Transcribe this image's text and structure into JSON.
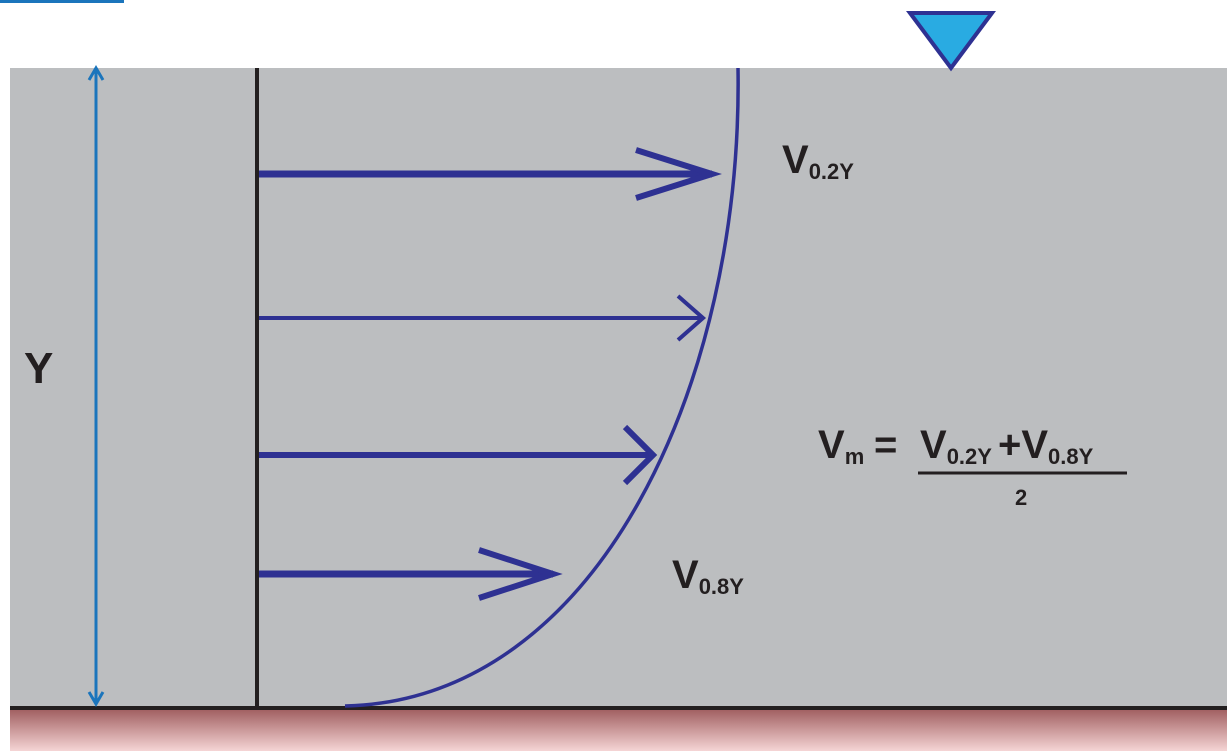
{
  "labels": {
    "depth": "Y",
    "v_upper": {
      "main": "V",
      "sub": "0.2Y"
    },
    "v_lower": {
      "main": "V",
      "sub": "0.8Y"
    }
  },
  "formula": {
    "lhs_main": "V",
    "lhs_sub": "m",
    "equals": "=",
    "num1_main": "V",
    "num1_sub": "0.2Y",
    "plus": "+",
    "num2_main": "V",
    "num2_sub": "0.8Y",
    "denominator": "2"
  },
  "colors": {
    "water": "#bcbec0",
    "profile": "#2e3192",
    "depth_arrow": "#1b75bc",
    "surface_marker": "#29abe2",
    "bed_top": "#9e5b5d",
    "bed_bottom": "#f5d5d5",
    "axis_line": "#231f20"
  }
}
